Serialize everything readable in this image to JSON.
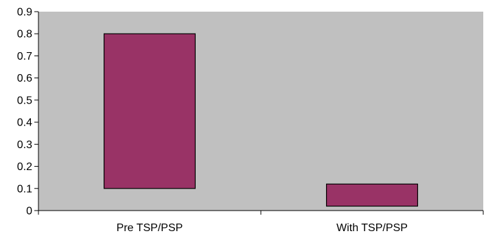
{
  "colors": {
    "plot_background": "#c0c0c0",
    "bar_fill": "#993366",
    "bar_stroke": "#000000",
    "axis": "#000000"
  },
  "chart_data": {
    "type": "bar",
    "subtype": "floating-range",
    "categories": [
      "Pre TSP/PSP",
      "With TSP/PSP"
    ],
    "series": [
      {
        "low": [
          0.1,
          0.02
        ],
        "high": [
          0.8,
          0.12
        ]
      }
    ],
    "title": "",
    "xlabel": "",
    "ylabel": "",
    "ylim": [
      0,
      0.9
    ],
    "yticks": [
      "0",
      "0.1",
      "0.2",
      "0.3",
      "0.4",
      "0.5",
      "0.6",
      "0.7",
      "0.8",
      "0.9"
    ],
    "grid": false,
    "legend": "none"
  }
}
